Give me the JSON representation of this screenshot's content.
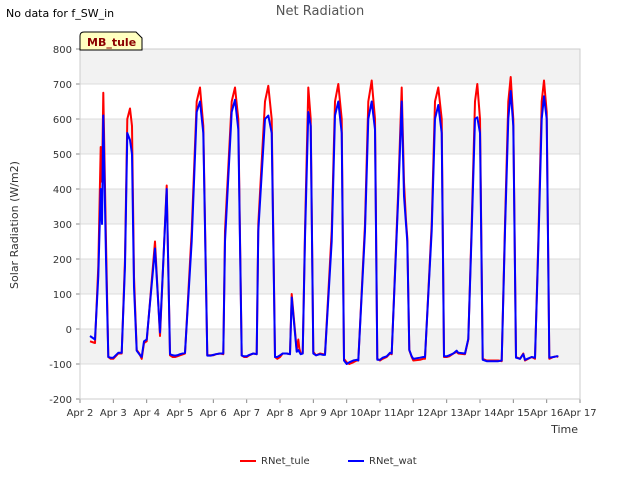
{
  "page": {
    "note": "No data for f_SW_in",
    "site_badge": "MB_tule"
  },
  "chart_data": {
    "type": "line",
    "title": "Net Radiation",
    "xlabel": "Time",
    "ylabel": "Solar Radiation (W/m2)",
    "xlim": [
      2,
      17
    ],
    "ylim": [
      -200,
      800
    ],
    "x_tick_labels": [
      "Apr 2",
      "Apr 3",
      "Apr 4",
      "Apr 5",
      "Apr 6",
      "Apr 7",
      "Apr 8",
      "Apr 9",
      "Apr 10",
      "Apr 11",
      "Apr 12",
      "Apr 13",
      "Apr 14",
      "Apr 15",
      "Apr 16",
      "Apr 17"
    ],
    "x_tick_values": [
      2,
      3,
      4,
      5,
      6,
      7,
      8,
      9,
      10,
      11,
      12,
      13,
      14,
      15,
      16,
      17
    ],
    "y_ticks": [
      -200,
      -100,
      0,
      100,
      200,
      300,
      400,
      500,
      600,
      700,
      800
    ],
    "grid": true,
    "legend_position": "bottom",
    "series": [
      {
        "name": "RNet_tule",
        "color": "#ff0000",
        "x": [
          2.3,
          2.45,
          2.55,
          2.62,
          2.66,
          2.7,
          2.78,
          2.85,
          2.92,
          3.0,
          3.15,
          3.25,
          3.35,
          3.42,
          3.5,
          3.56,
          3.62,
          3.7,
          3.78,
          3.85,
          3.92,
          4.0,
          4.25,
          4.4,
          4.6,
          4.7,
          4.78,
          4.85,
          4.92,
          5.0,
          5.15,
          5.35,
          5.5,
          5.6,
          5.7,
          5.82,
          5.92,
          6.0,
          6.08,
          6.2,
          6.3,
          6.35,
          6.55,
          6.65,
          6.75,
          6.85,
          6.92,
          7.0,
          7.08,
          7.2,
          7.3,
          7.35,
          7.55,
          7.65,
          7.75,
          7.85,
          7.92,
          8.0,
          8.08,
          8.2,
          8.3,
          8.35,
          8.5,
          8.55,
          8.58,
          8.62,
          8.68,
          8.75,
          8.85,
          8.92,
          9.0,
          9.08,
          9.2,
          9.3,
          9.35,
          9.55,
          9.65,
          9.75,
          9.85,
          9.92,
          10.0,
          10.08,
          10.2,
          10.3,
          10.35,
          10.55,
          10.65,
          10.75,
          10.85,
          10.92,
          11.0,
          11.08,
          11.2,
          11.3,
          11.35,
          11.55,
          11.65,
          11.72,
          11.78,
          11.82,
          11.88,
          11.95,
          12.0,
          12.2,
          12.3,
          12.35,
          12.55,
          12.65,
          12.75,
          12.85,
          12.92,
          13.0,
          13.08,
          13.2,
          13.3,
          13.35,
          13.55,
          13.65,
          13.75,
          13.85,
          13.92,
          14.0,
          14.08,
          14.2,
          14.3,
          14.35,
          14.55,
          14.65,
          14.75,
          14.85,
          14.92,
          15.0,
          15.08,
          15.2,
          15.3,
          15.35,
          15.55,
          15.65,
          15.75,
          15.85,
          15.92,
          16.0,
          16.08,
          16.2,
          16.3,
          16.35
        ],
        "y": [
          -35,
          -40,
          180,
          520,
          420,
          675,
          250,
          -80,
          -85,
          -85,
          -70,
          -70,
          200,
          600,
          630,
          580,
          150,
          -60,
          -70,
          -85,
          -40,
          -35,
          250,
          -20,
          410,
          -75,
          -80,
          -80,
          -78,
          -75,
          -70,
          280,
          650,
          690,
          580,
          -75,
          -75,
          -75,
          -72,
          -70,
          -72,
          280,
          650,
          690,
          600,
          -75,
          -80,
          -80,
          -75,
          -70,
          -72,
          300,
          650,
          695,
          600,
          -80,
          -85,
          -80,
          -70,
          -70,
          -72,
          100,
          -60,
          -30,
          -55,
          -70,
          -70,
          280,
          690,
          600,
          -65,
          -75,
          -70,
          -72,
          -72,
          280,
          650,
          700,
          600,
          -85,
          -95,
          -100,
          -95,
          -90,
          -90,
          300,
          650,
          710,
          600,
          -85,
          -90,
          -85,
          -80,
          -70,
          -72,
          400,
          690,
          420,
          310,
          260,
          -60,
          -80,
          -90,
          -88,
          -85,
          -85,
          300,
          650,
          690,
          600,
          -80,
          -80,
          -78,
          -70,
          -65,
          -70,
          -72,
          -30,
          300,
          650,
          700,
          600,
          -85,
          -90,
          -90,
          -90,
          -90,
          -92,
          300,
          650,
          720,
          600,
          -80,
          -85,
          -70,
          -90,
          -80,
          -85,
          250,
          650,
          710,
          620,
          -85,
          -80,
          -78,
          -80
        ]
      },
      {
        "name": "RNet_wat",
        "color": "#0000ff",
        "x": [
          2.3,
          2.45,
          2.55,
          2.62,
          2.66,
          2.7,
          2.78,
          2.85,
          2.92,
          3.0,
          3.15,
          3.25,
          3.35,
          3.42,
          3.5,
          3.56,
          3.62,
          3.7,
          3.78,
          3.85,
          3.92,
          4.0,
          4.25,
          4.4,
          4.6,
          4.7,
          4.78,
          4.85,
          4.92,
          5.0,
          5.15,
          5.35,
          5.5,
          5.6,
          5.7,
          5.82,
          5.92,
          6.0,
          6.08,
          6.2,
          6.3,
          6.35,
          6.55,
          6.65,
          6.75,
          6.85,
          6.92,
          7.0,
          7.08,
          7.2,
          7.3,
          7.35,
          7.55,
          7.65,
          7.75,
          7.85,
          7.92,
          8.0,
          8.08,
          8.2,
          8.3,
          8.35,
          8.5,
          8.55,
          8.58,
          8.62,
          8.68,
          8.75,
          8.85,
          8.92,
          9.0,
          9.08,
          9.2,
          9.3,
          9.35,
          9.55,
          9.65,
          9.75,
          9.85,
          9.92,
          10.0,
          10.08,
          10.2,
          10.3,
          10.35,
          10.55,
          10.65,
          10.75,
          10.85,
          10.92,
          11.0,
          11.08,
          11.2,
          11.3,
          11.35,
          11.55,
          11.65,
          11.72,
          11.78,
          11.82,
          11.88,
          11.95,
          12.0,
          12.2,
          12.3,
          12.35,
          12.55,
          12.65,
          12.75,
          12.85,
          12.92,
          13.0,
          13.08,
          13.2,
          13.3,
          13.35,
          13.55,
          13.65,
          13.75,
          13.85,
          13.92,
          14.0,
          14.08,
          14.2,
          14.3,
          14.35,
          14.55,
          14.65,
          14.75,
          14.85,
          14.92,
          15.0,
          15.08,
          15.2,
          15.3,
          15.35,
          15.55,
          15.65,
          15.75,
          15.85,
          15.92,
          16.0,
          16.08,
          16.2,
          16.3,
          16.35
        ],
        "y": [
          -20,
          -30,
          150,
          400,
          300,
          610,
          200,
          -80,
          -82,
          -82,
          -68,
          -68,
          180,
          560,
          540,
          500,
          120,
          -62,
          -72,
          -80,
          -35,
          -30,
          230,
          -10,
          400,
          -72,
          -75,
          -76,
          -75,
          -72,
          -68,
          250,
          620,
          650,
          560,
          -76,
          -76,
          -74,
          -72,
          -70,
          -70,
          250,
          620,
          655,
          570,
          -76,
          -78,
          -78,
          -74,
          -70,
          -72,
          280,
          600,
          610,
          560,
          -80,
          -80,
          -75,
          -70,
          -70,
          -72,
          90,
          -65,
          -60,
          -65,
          -72,
          -70,
          260,
          620,
          580,
          -70,
          -75,
          -72,
          -74,
          -74,
          250,
          610,
          650,
          560,
          -90,
          -100,
          -95,
          -90,
          -88,
          -90,
          280,
          600,
          650,
          570,
          -88,
          -88,
          -82,
          -78,
          -68,
          -70,
          380,
          650,
          380,
          300,
          250,
          -60,
          -78,
          -85,
          -82,
          -80,
          -80,
          280,
          600,
          640,
          560,
          -78,
          -78,
          -75,
          -70,
          -62,
          -68,
          -70,
          -28,
          280,
          600,
          605,
          560,
          -88,
          -92,
          -92,
          -92,
          -92,
          -90,
          280,
          600,
          680,
          580,
          -82,
          -85,
          -72,
          -88,
          -80,
          -82,
          230,
          600,
          665,
          600,
          -82,
          -80,
          -78,
          -78
        ]
      }
    ]
  }
}
